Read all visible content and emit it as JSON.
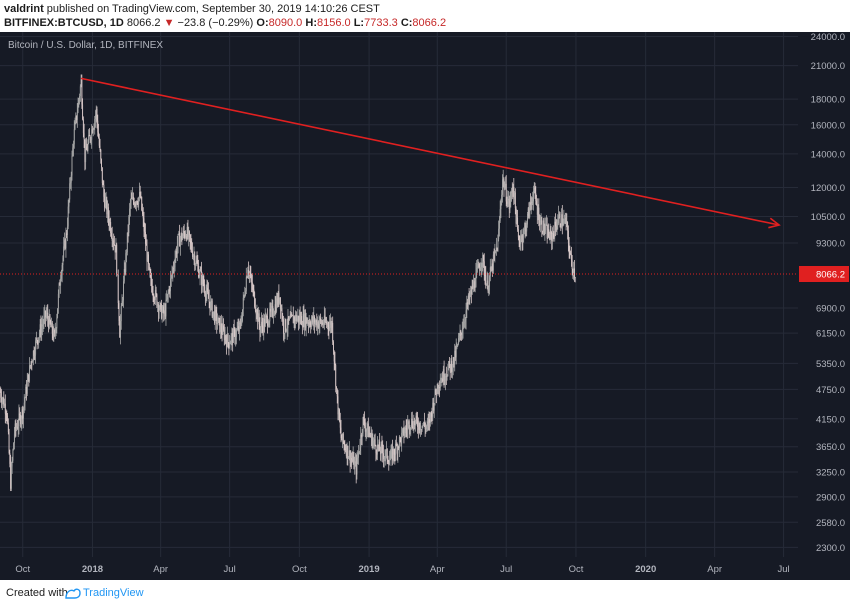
{
  "header": {
    "author": "valdrint",
    "published_text": "published on TradingView.com, September 30, 2019 14:10:26 CEST",
    "symbol": "BITFINEX:BTCUSD, 1D",
    "price": "8066.2",
    "change": "−23.8 (−0.29%)",
    "open_label": "O:",
    "open": "8090.0",
    "high_label": "H:",
    "high": "8156.0",
    "low_label": "L:",
    "low": "7733.3",
    "close_label": "C:",
    "close": "8066.2",
    "down_arrow": "▼"
  },
  "footer": {
    "created_with": "Created with",
    "brand": "TradingView"
  },
  "colors": {
    "background": "#161a25",
    "grid": "#262b38",
    "candle_up": "#a8a8a8",
    "candle_down": "#d8c8c8",
    "trendline": "#e02020",
    "price_line": "#e02020",
    "axis_text": "#b2b5be",
    "price_label_bg": "#e02020"
  },
  "chart_data": {
    "type": "candlestick",
    "title": "Bitcoin / U.S. Dollar, 1D, BITFINEX",
    "scale": "log",
    "x_range": [
      "2017-09-01",
      "2020-07-20"
    ],
    "y_range": [
      2200,
      24500
    ],
    "x_ticks": [
      {
        "date": "2017-10-01",
        "label": "Oct"
      },
      {
        "date": "2018-01-01",
        "label": "2018"
      },
      {
        "date": "2018-04-01",
        "label": "Apr"
      },
      {
        "date": "2018-07-01",
        "label": "Jul"
      },
      {
        "date": "2018-10-01",
        "label": "Oct"
      },
      {
        "date": "2019-01-01",
        "label": "2019"
      },
      {
        "date": "2019-04-01",
        "label": "Apr"
      },
      {
        "date": "2019-07-01",
        "label": "Jul"
      },
      {
        "date": "2019-10-01",
        "label": "Oct"
      },
      {
        "date": "2020-01-01",
        "label": "2020"
      },
      {
        "date": "2020-04-01",
        "label": "Apr"
      },
      {
        "date": "2020-07-01",
        "label": "Jul"
      }
    ],
    "y_ticks": [
      24000.0,
      21000.0,
      18000.0,
      16000.0,
      14000.0,
      12000.0,
      10500.0,
      9300.0,
      8066.2,
      6900.0,
      6150.0,
      5350.0,
      4750.0,
      4150.0,
      3650.0,
      3250.0,
      2900.0,
      2580.0,
      2300.0
    ],
    "y_tick_labels": [
      "24000.0",
      "21000.0",
      "18000.0",
      "16000.0",
      "14000.0",
      "12000.0",
      "10500.0",
      "9300.0",
      "8066.2",
      "6900.0",
      "6150.0",
      "5350.0",
      "4750.0",
      "4150.0",
      "3650.0",
      "3250.0",
      "2900.0",
      "2580.0",
      "2300.0"
    ],
    "last_price": 8066.2,
    "last_price_label": "8066.2",
    "trendline": {
      "start": {
        "date": "2017-12-17",
        "value": 19800
      },
      "end": {
        "date": "2020-06-25",
        "value": 10100
      },
      "arrow": true
    },
    "price_path": [
      {
        "date": "2017-09-01",
        "value": 4700
      },
      {
        "date": "2017-09-10",
        "value": 4300
      },
      {
        "date": "2017-09-15",
        "value": 3100
      },
      {
        "date": "2017-09-20",
        "value": 3900
      },
      {
        "date": "2017-10-01",
        "value": 4300
      },
      {
        "date": "2017-10-12",
        "value": 5400
      },
      {
        "date": "2017-10-20",
        "value": 6000
      },
      {
        "date": "2017-11-01",
        "value": 6700
      },
      {
        "date": "2017-11-12",
        "value": 6000
      },
      {
        "date": "2017-11-20",
        "value": 8100
      },
      {
        "date": "2017-11-28",
        "value": 9800
      },
      {
        "date": "2017-12-07",
        "value": 15000
      },
      {
        "date": "2017-12-17",
        "value": 19500
      },
      {
        "date": "2017-12-22",
        "value": 13800
      },
      {
        "date": "2018-01-06",
        "value": 17000
      },
      {
        "date": "2018-01-16",
        "value": 11500
      },
      {
        "date": "2018-02-01",
        "value": 9000
      },
      {
        "date": "2018-02-06",
        "value": 6200
      },
      {
        "date": "2018-02-20",
        "value": 11200
      },
      {
        "date": "2018-03-05",
        "value": 11500
      },
      {
        "date": "2018-03-18",
        "value": 7800
      },
      {
        "date": "2018-04-01",
        "value": 6800
      },
      {
        "date": "2018-04-06",
        "value": 6700
      },
      {
        "date": "2018-04-24",
        "value": 9400
      },
      {
        "date": "2018-05-05",
        "value": 9800
      },
      {
        "date": "2018-05-20",
        "value": 8300
      },
      {
        "date": "2018-06-10",
        "value": 6700
      },
      {
        "date": "2018-06-29",
        "value": 5900
      },
      {
        "date": "2018-07-15",
        "value": 6300
      },
      {
        "date": "2018-07-25",
        "value": 8400
      },
      {
        "date": "2018-08-10",
        "value": 6300
      },
      {
        "date": "2018-08-25",
        "value": 6700
      },
      {
        "date": "2018-09-05",
        "value": 7300
      },
      {
        "date": "2018-09-10",
        "value": 6300
      },
      {
        "date": "2018-09-25",
        "value": 6600
      },
      {
        "date": "2018-10-15",
        "value": 6500
      },
      {
        "date": "2018-11-13",
        "value": 6400
      },
      {
        "date": "2018-11-20",
        "value": 4500
      },
      {
        "date": "2018-11-25",
        "value": 3800
      },
      {
        "date": "2018-12-15",
        "value": 3300
      },
      {
        "date": "2018-12-24",
        "value": 4100
      },
      {
        "date": "2019-01-10",
        "value": 3650
      },
      {
        "date": "2019-01-29",
        "value": 3450
      },
      {
        "date": "2019-02-24",
        "value": 4100
      },
      {
        "date": "2019-03-20",
        "value": 4000
      },
      {
        "date": "2019-04-02",
        "value": 4900
      },
      {
        "date": "2019-04-23",
        "value": 5400
      },
      {
        "date": "2019-05-11",
        "value": 7000
      },
      {
        "date": "2019-05-30",
        "value": 8700
      },
      {
        "date": "2019-06-06",
        "value": 7600
      },
      {
        "date": "2019-06-20",
        "value": 9300
      },
      {
        "date": "2019-06-26",
        "value": 12500
      },
      {
        "date": "2019-07-05",
        "value": 11000
      },
      {
        "date": "2019-07-10",
        "value": 12200
      },
      {
        "date": "2019-07-17",
        "value": 9400
      },
      {
        "date": "2019-07-25",
        "value": 9800
      },
      {
        "date": "2019-08-06",
        "value": 11800
      },
      {
        "date": "2019-08-15",
        "value": 10200
      },
      {
        "date": "2019-08-29",
        "value": 9500
      },
      {
        "date": "2019-09-08",
        "value": 10400
      },
      {
        "date": "2019-09-18",
        "value": 10200
      },
      {
        "date": "2019-09-24",
        "value": 8600
      },
      {
        "date": "2019-09-30",
        "value": 8066
      }
    ]
  }
}
